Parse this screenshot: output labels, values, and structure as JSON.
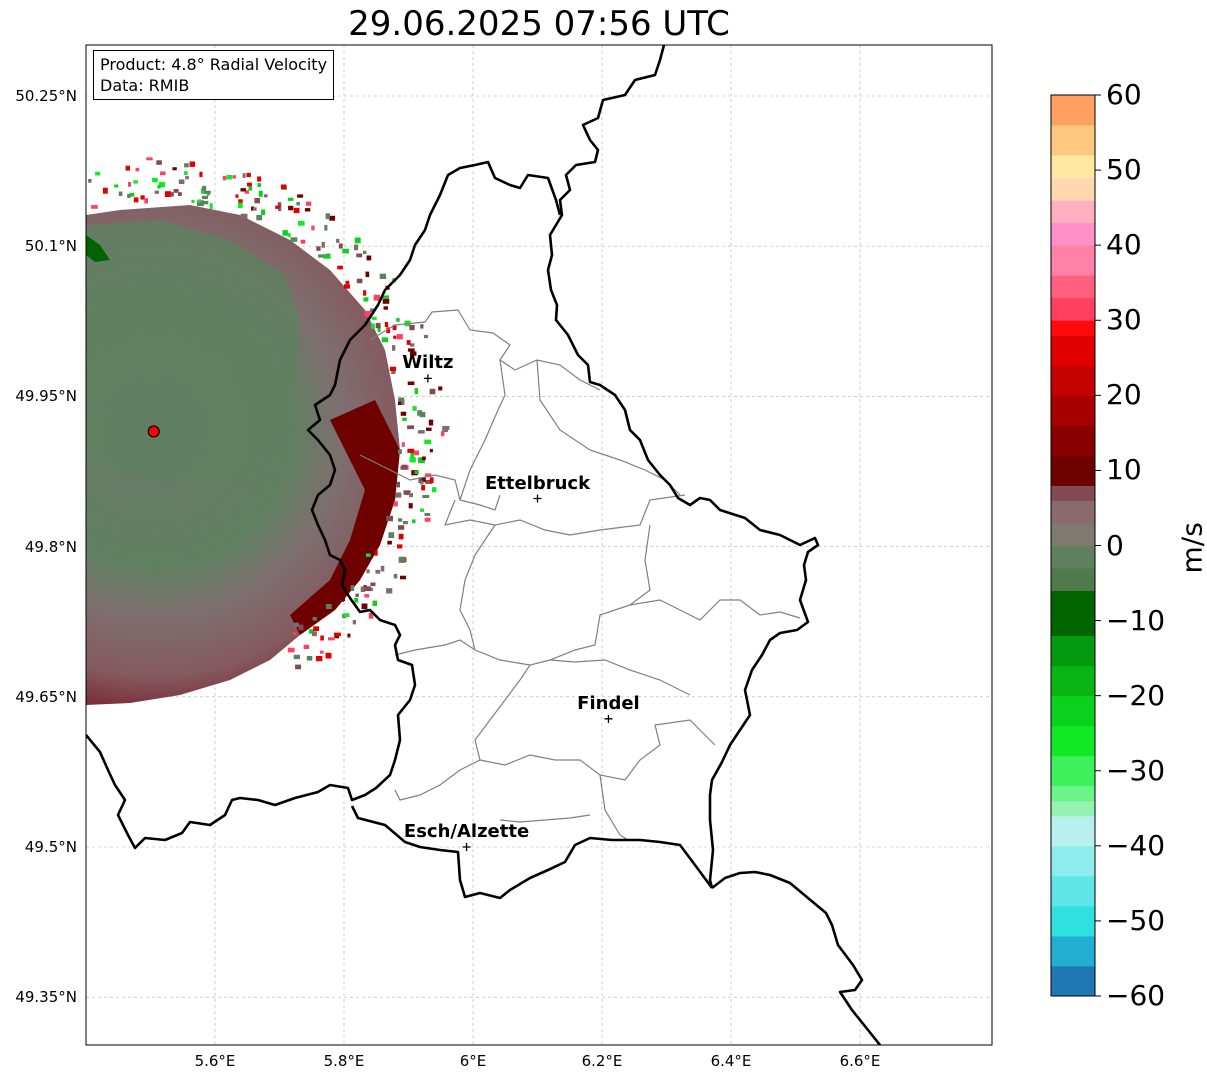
{
  "title": "29.06.2025 07:56 UTC",
  "info_box": {
    "product": "Product: 4.8° Radial Velocity",
    "source": "Data: RMIB"
  },
  "lat_labels": [
    {
      "value": 50.25,
      "text": "50.25°N"
    },
    {
      "value": 50.1,
      "text": "50.1°N"
    },
    {
      "value": 49.95,
      "text": "49.95°N"
    },
    {
      "value": 49.8,
      "text": "49.8°N"
    },
    {
      "value": 49.65,
      "text": "49.65°N"
    },
    {
      "value": 49.5,
      "text": "49.5°N"
    },
    {
      "value": 49.35,
      "text": "49.35°N"
    }
  ],
  "lon_labels": [
    {
      "value": 5.6,
      "text": "5.6°E"
    },
    {
      "value": 5.8,
      "text": "5.8°E"
    },
    {
      "value": 6.0,
      "text": "6°E"
    },
    {
      "value": 6.2,
      "text": "6.2°E"
    },
    {
      "value": 6.4,
      "text": "6.4°E"
    },
    {
      "value": 6.6,
      "text": "6.6°E"
    }
  ],
  "cities": [
    {
      "name": "Wiltz",
      "lon": 5.93,
      "lat": 49.968
    },
    {
      "name": "Ettelbruck",
      "lon": 6.1,
      "lat": 49.848
    },
    {
      "name": "Findel",
      "lon": 6.21,
      "lat": 49.628
    },
    {
      "name": "Esch/Alzette",
      "lon": 5.99,
      "lat": 49.5
    }
  ],
  "radar_site": {
    "lon": 5.505,
    "lat": 49.915
  },
  "colorbar": {
    "unit": "m/s",
    "min": -60,
    "max": 60,
    "ticks": [
      {
        "value": 60,
        "text": "60"
      },
      {
        "value": 50,
        "text": "50"
      },
      {
        "value": 40,
        "text": "40"
      },
      {
        "value": 30,
        "text": "30"
      },
      {
        "value": 20,
        "text": "20"
      },
      {
        "value": 10,
        "text": "10"
      },
      {
        "value": 0,
        "text": "0"
      },
      {
        "value": -10,
        "text": "−10"
      },
      {
        "value": -20,
        "text": "−20"
      },
      {
        "value": -30,
        "text": "−30"
      },
      {
        "value": -40,
        "text": "−40"
      },
      {
        "value": -50,
        "text": "−50"
      },
      {
        "value": -60,
        "text": "−60"
      }
    ],
    "stops": [
      {
        "from": -60,
        "to": -56,
        "color": "#1f77b4"
      },
      {
        "from": -56,
        "to": -52,
        "color": "#21aed2"
      },
      {
        "from": -52,
        "to": -48,
        "color": "#2ee0e0"
      },
      {
        "from": -48,
        "to": -44,
        "color": "#5ee6e6"
      },
      {
        "from": -44,
        "to": -40,
        "color": "#8eecec"
      },
      {
        "from": -40,
        "to": -36,
        "color": "#b8f0f0"
      },
      {
        "from": -36,
        "to": -34,
        "color": "#94f3b0"
      },
      {
        "from": -34,
        "to": -32,
        "color": "#6af58a"
      },
      {
        "from": -32,
        "to": -28,
        "color": "#3ef05a"
      },
      {
        "from": -28,
        "to": -24,
        "color": "#11e826"
      },
      {
        "from": -24,
        "to": -20,
        "color": "#0ad11c"
      },
      {
        "from": -20,
        "to": -16,
        "color": "#07b615"
      },
      {
        "from": -16,
        "to": -12,
        "color": "#049a0f"
      },
      {
        "from": -12,
        "to": -6,
        "color": "#006400"
      },
      {
        "from": -6,
        "to": -3,
        "color": "#4e7a4e"
      },
      {
        "from": -3,
        "to": 0,
        "color": "#5f805f"
      },
      {
        "from": 0,
        "to": 3,
        "color": "#7f7a70"
      },
      {
        "from": 3,
        "to": 6,
        "color": "#8a6a6f"
      },
      {
        "from": 6,
        "to": 8,
        "color": "#824a52"
      },
      {
        "from": 8,
        "to": 12,
        "color": "#6e0000"
      },
      {
        "from": 12,
        "to": 16,
        "color": "#880000"
      },
      {
        "from": 16,
        "to": 20,
        "color": "#a80000"
      },
      {
        "from": 20,
        "to": 24,
        "color": "#c40000"
      },
      {
        "from": 24,
        "to": 28,
        "color": "#e00000"
      },
      {
        "from": 28,
        "to": 30,
        "color": "#ff0a0a"
      },
      {
        "from": 30,
        "to": 33,
        "color": "#ff4060"
      },
      {
        "from": 33,
        "to": 36,
        "color": "#ff6080"
      },
      {
        "from": 36,
        "to": 40,
        "color": "#ff80a8"
      },
      {
        "from": 40,
        "to": 43,
        "color": "#ff90c8"
      },
      {
        "from": 43,
        "to": 46,
        "color": "#ffb0c0"
      },
      {
        "from": 46,
        "to": 49,
        "color": "#ffd8b0"
      },
      {
        "from": 49,
        "to": 52,
        "color": "#ffe8a0"
      },
      {
        "from": 52,
        "to": 56,
        "color": "#ffc880"
      },
      {
        "from": 56,
        "to": 60,
        "color": "#ffa060"
      }
    ]
  },
  "colors": {
    "positive_dark": "#6e0000",
    "neutral_positive": "#806a6e",
    "neutral_negative": "#5f805f",
    "grid": "#b0b0b0",
    "border": "#000000",
    "canton": "#808080"
  }
}
